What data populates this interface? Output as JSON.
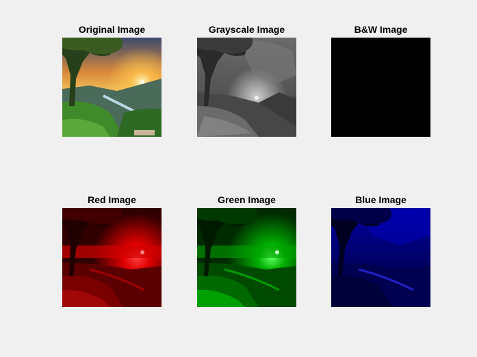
{
  "figure": {
    "background": "#f0f0f0",
    "subplots": [
      {
        "title": "Original Image",
        "kind": "original"
      },
      {
        "title": "Grayscale Image",
        "kind": "grayscale"
      },
      {
        "title": "B&W Image",
        "kind": "bw"
      },
      {
        "title": "Red Image",
        "kind": "red"
      },
      {
        "title": "Green Image",
        "kind": "green"
      },
      {
        "title": "Blue Image",
        "kind": "blue"
      }
    ]
  },
  "colors": {
    "bw_fill": "#000000"
  }
}
